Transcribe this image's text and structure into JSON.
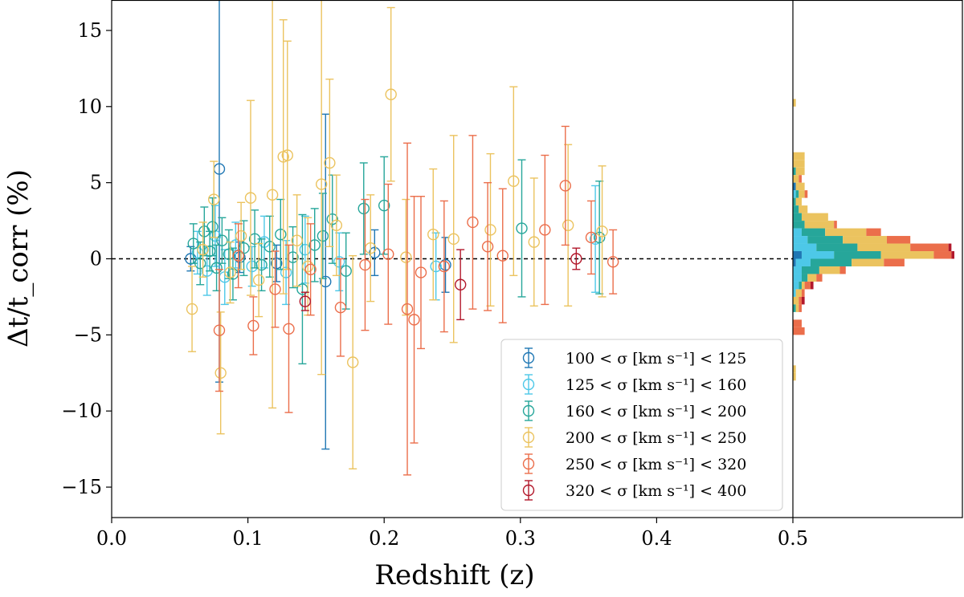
{
  "chart_data": {
    "type": "scatter",
    "xlabel": "Redshift (z)",
    "ylabel": "Δt/t_corr (%)",
    "xlim": [
      0.0,
      0.5
    ],
    "ylim": [
      -17,
      17
    ],
    "x_ticks": [
      "0.0",
      "0.1",
      "0.2",
      "0.3",
      "0.4",
      "0.5"
    ],
    "y_ticks": [
      "−15",
      "−10",
      "−5",
      "0",
      "5",
      "10",
      "15"
    ],
    "reference_line": {
      "y": 0,
      "style": "dashed"
    },
    "legend_position": "lower-right",
    "grid": false,
    "series": [
      {
        "name": "100 < σ [km s⁻¹] < 125",
        "color": "#1f77b4",
        "points": [
          {
            "x": 0.058,
            "y": 0.0,
            "err": 0.8
          },
          {
            "x": 0.079,
            "y": 5.9,
            "err": 14.0
          },
          {
            "x": 0.094,
            "y": 0.1,
            "err": 1.0
          },
          {
            "x": 0.121,
            "y": -0.3,
            "err": 1.2
          },
          {
            "x": 0.157,
            "y": -1.5,
            "err": 11.0
          },
          {
            "x": 0.193,
            "y": 0.4,
            "err": 1.5
          },
          {
            "x": 0.245,
            "y": -0.4,
            "err": 1.8
          }
        ]
      },
      {
        "name": "125 < σ [km s⁻¹] < 160",
        "color": "#4dc8e8",
        "points": [
          {
            "x": 0.063,
            "y": 0.4,
            "err": 1.4
          },
          {
            "x": 0.07,
            "y": -0.8,
            "err": 1.6
          },
          {
            "x": 0.076,
            "y": 1.5,
            "err": 2.0
          },
          {
            "x": 0.083,
            "y": -1.2,
            "err": 1.8
          },
          {
            "x": 0.091,
            "y": 0.9,
            "err": 1.5
          },
          {
            "x": 0.103,
            "y": -0.5,
            "err": 1.3
          },
          {
            "x": 0.112,
            "y": 1.1,
            "err": 1.7
          },
          {
            "x": 0.128,
            "y": -0.9,
            "err": 2.1
          },
          {
            "x": 0.142,
            "y": 0.6,
            "err": 2.2
          },
          {
            "x": 0.167,
            "y": -0.2,
            "err": 1.9
          },
          {
            "x": 0.238,
            "y": -0.5,
            "err": 2.2
          },
          {
            "x": 0.355,
            "y": 1.3,
            "err": 3.5
          }
        ]
      },
      {
        "name": "160 < σ [km s⁻¹] < 200",
        "color": "#26a69a",
        "points": [
          {
            "x": 0.06,
            "y": 1.0,
            "err": 1.3
          },
          {
            "x": 0.065,
            "y": -0.3,
            "err": 1.4
          },
          {
            "x": 0.068,
            "y": 1.8,
            "err": 1.6
          },
          {
            "x": 0.072,
            "y": 0.5,
            "err": 1.3
          },
          {
            "x": 0.074,
            "y": 2.1,
            "err": 1.9
          },
          {
            "x": 0.077,
            "y": -0.6,
            "err": 1.5
          },
          {
            "x": 0.081,
            "y": 1.2,
            "err": 1.5
          },
          {
            "x": 0.086,
            "y": 0.3,
            "err": 1.6
          },
          {
            "x": 0.089,
            "y": -1.0,
            "err": 1.7
          },
          {
            "x": 0.097,
            "y": 0.7,
            "err": 1.8
          },
          {
            "x": 0.105,
            "y": 1.3,
            "err": 1.9
          },
          {
            "x": 0.11,
            "y": -0.4,
            "err": 1.7
          },
          {
            "x": 0.116,
            "y": 0.8,
            "err": 2.0
          },
          {
            "x": 0.124,
            "y": 1.6,
            "err": 2.3
          },
          {
            "x": 0.133,
            "y": 0.1,
            "err": 2.0
          },
          {
            "x": 0.14,
            "y": -2.0,
            "err": 4.9
          },
          {
            "x": 0.149,
            "y": 0.9,
            "err": 2.4
          },
          {
            "x": 0.155,
            "y": 1.5,
            "err": 2.8
          },
          {
            "x": 0.162,
            "y": 2.6,
            "err": 2.9
          },
          {
            "x": 0.172,
            "y": -0.8,
            "err": 2.5
          },
          {
            "x": 0.185,
            "y": 3.3,
            "err": 3.0
          },
          {
            "x": 0.2,
            "y": 3.5,
            "err": 3.2
          },
          {
            "x": 0.301,
            "y": 2.0,
            "err": 4.5
          },
          {
            "x": 0.358,
            "y": 1.4,
            "err": 3.7
          }
        ]
      },
      {
        "name": "200 < σ [km s⁻¹] < 250",
        "color": "#ebc35f",
        "points": [
          {
            "x": 0.059,
            "y": -3.3,
            "err": 2.8
          },
          {
            "x": 0.067,
            "y": 0.6,
            "err": 1.8
          },
          {
            "x": 0.075,
            "y": 3.9,
            "err": 2.5
          },
          {
            "x": 0.08,
            "y": -7.5,
            "err": 4.0
          },
          {
            "x": 0.087,
            "y": -0.9,
            "err": 2.0
          },
          {
            "x": 0.095,
            "y": 1.5,
            "err": 2.2
          },
          {
            "x": 0.102,
            "y": 4.0,
            "err": 6.4
          },
          {
            "x": 0.108,
            "y": -1.4,
            "err": 2.4
          },
          {
            "x": 0.118,
            "y": 4.2,
            "err": 14.0
          },
          {
            "x": 0.126,
            "y": 6.7,
            "err": 9.0
          },
          {
            "x": 0.129,
            "y": 6.8,
            "err": 7.5
          },
          {
            "x": 0.136,
            "y": 1.2,
            "err": 3.0
          },
          {
            "x": 0.144,
            "y": -0.5,
            "err": 3.2
          },
          {
            "x": 0.154,
            "y": 4.9,
            "err": 12.5
          },
          {
            "x": 0.16,
            "y": 6.3,
            "err": 5.5
          },
          {
            "x": 0.165,
            "y": 2.2,
            "err": 3.3
          },
          {
            "x": 0.177,
            "y": -6.8,
            "err": 7.0
          },
          {
            "x": 0.19,
            "y": 0.7,
            "err": 3.5
          },
          {
            "x": 0.205,
            "y": 10.8,
            "err": 5.7
          },
          {
            "x": 0.216,
            "y": 0.1,
            "err": 3.8
          },
          {
            "x": 0.236,
            "y": 1.6,
            "err": 4.3
          },
          {
            "x": 0.251,
            "y": 1.3,
            "err": 6.8
          },
          {
            "x": 0.278,
            "y": 1.9,
            "err": 5.0
          },
          {
            "x": 0.295,
            "y": 5.1,
            "err": 6.2
          },
          {
            "x": 0.31,
            "y": 1.1,
            "err": 4.2
          },
          {
            "x": 0.335,
            "y": 2.2,
            "err": 5.3
          },
          {
            "x": 0.36,
            "y": 1.8,
            "err": 4.3
          }
        ]
      },
      {
        "name": "250 < σ [km s⁻¹] < 320",
        "color": "#eb6e4b",
        "points": [
          {
            "x": 0.079,
            "y": -4.7,
            "err": 4.0
          },
          {
            "x": 0.093,
            "y": 0.2,
            "err": 2.1
          },
          {
            "x": 0.104,
            "y": -4.4,
            "err": 1.9
          },
          {
            "x": 0.12,
            "y": -2.0,
            "err": 2.5
          },
          {
            "x": 0.13,
            "y": -4.6,
            "err": 5.5
          },
          {
            "x": 0.146,
            "y": -0.7,
            "err": 3.0
          },
          {
            "x": 0.168,
            "y": -3.2,
            "err": 3.2
          },
          {
            "x": 0.186,
            "y": -0.4,
            "err": 4.3
          },
          {
            "x": 0.203,
            "y": 0.3,
            "err": 4.6
          },
          {
            "x": 0.217,
            "y": -3.3,
            "err": 10.9
          },
          {
            "x": 0.222,
            "y": -4.0,
            "err": 8.1
          },
          {
            "x": 0.227,
            "y": -0.9,
            "err": 5.0
          },
          {
            "x": 0.244,
            "y": -0.5,
            "err": 4.3
          },
          {
            "x": 0.265,
            "y": 2.4,
            "err": 5.7
          },
          {
            "x": 0.276,
            "y": 0.8,
            "err": 4.2
          },
          {
            "x": 0.287,
            "y": 0.2,
            "err": 4.4
          },
          {
            "x": 0.318,
            "y": 1.9,
            "err": 4.9
          },
          {
            "x": 0.333,
            "y": 4.8,
            "err": 3.9
          },
          {
            "x": 0.352,
            "y": 1.4,
            "err": 2.4
          },
          {
            "x": 0.368,
            "y": -0.2,
            "err": 2.1
          }
        ]
      },
      {
        "name": "320 < σ [km s⁻¹] < 400",
        "color": "#b2182b",
        "points": [
          {
            "x": 0.142,
            "y": -2.8,
            "err": 0.6
          },
          {
            "x": 0.256,
            "y": -1.7,
            "err": 2.3
          },
          {
            "x": 0.341,
            "y": 0.0,
            "err": 0.7
          }
        ]
      }
    ],
    "histogram": {
      "type": "stacked-horizontal-bar",
      "bin_width": 0.5,
      "bins": [
        {
          "y": 10.25,
          "counts": [
            0,
            0,
            0,
            1,
            0,
            0
          ]
        },
        {
          "y": 6.75,
          "counts": [
            0,
            0,
            0,
            4,
            0,
            0
          ]
        },
        {
          "y": 6.25,
          "counts": [
            0,
            0,
            0,
            4,
            0,
            0
          ]
        },
        {
          "y": 5.75,
          "counts": [
            0,
            0,
            1,
            3,
            0,
            0
          ]
        },
        {
          "y": 5.25,
          "counts": [
            0,
            0,
            0,
            2,
            1,
            0
          ]
        },
        {
          "y": 4.75,
          "counts": [
            1,
            0,
            0,
            3,
            0,
            0
          ]
        },
        {
          "y": 4.25,
          "counts": [
            0,
            1,
            1,
            2,
            1,
            0
          ]
        },
        {
          "y": 3.75,
          "counts": [
            0,
            0,
            1,
            2,
            0,
            0
          ]
        },
        {
          "y": 3.25,
          "counts": [
            0,
            0,
            2,
            3,
            0,
            0
          ]
        },
        {
          "y": 2.75,
          "counts": [
            0,
            0,
            3,
            9,
            0,
            0
          ]
        },
        {
          "y": 2.25,
          "counts": [
            0,
            0,
            4,
            10,
            1,
            0
          ]
        },
        {
          "y": 1.75,
          "counts": [
            0,
            3,
            8,
            14,
            5,
            0
          ]
        },
        {
          "y": 1.25,
          "counts": [
            0,
            5,
            12,
            15,
            8,
            0
          ]
        },
        {
          "y": 0.75,
          "counts": [
            0,
            8,
            14,
            18,
            13,
            1
          ]
        },
        {
          "y": 0.25,
          "counts": [
            3,
            11,
            16,
            18,
            6,
            1
          ]
        },
        {
          "y": -0.25,
          "counts": [
            1,
            5,
            14,
            11,
            7,
            0
          ]
        },
        {
          "y": -0.75,
          "counts": [
            0,
            3,
            6,
            7,
            2,
            0
          ]
        },
        {
          "y": -1.25,
          "counts": [
            0,
            3,
            2,
            3,
            2,
            0
          ]
        },
        {
          "y": -1.75,
          "counts": [
            0,
            2,
            1,
            1,
            2,
            1
          ]
        },
        {
          "y": -2.25,
          "counts": [
            0,
            1,
            0,
            2,
            1,
            0
          ]
        },
        {
          "y": -2.75,
          "counts": [
            0,
            0,
            0,
            2,
            1,
            1
          ]
        },
        {
          "y": -3.25,
          "counts": [
            0,
            0,
            1,
            1,
            1,
            0
          ]
        },
        {
          "y": -4.25,
          "counts": [
            0,
            0,
            0,
            0,
            3,
            0
          ]
        },
        {
          "y": -4.75,
          "counts": [
            0,
            0,
            0,
            0,
            4,
            0
          ]
        },
        {
          "y": -7.25,
          "counts": [
            0,
            0,
            0,
            1,
            0,
            0
          ]
        },
        {
          "y": -7.75,
          "counts": [
            0,
            0,
            0,
            1,
            0,
            0
          ]
        }
      ]
    }
  }
}
